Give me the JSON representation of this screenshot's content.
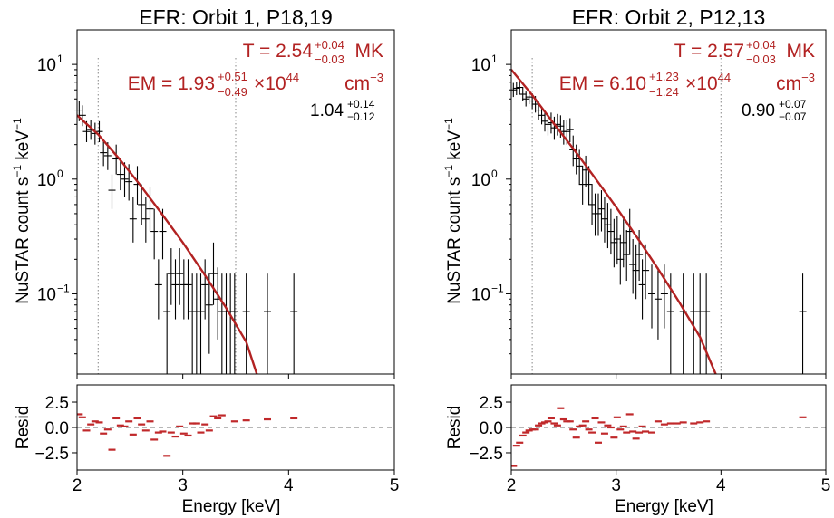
{
  "colors": {
    "model": "#b22222",
    "data": "#000000",
    "resid": "#c0282a",
    "vline": "#9a9a9a"
  },
  "chart_data": [
    {
      "type": "scatter",
      "title": "EFR: Orbit 1, P18,19",
      "ylabel": "NuSTAR count s",
      "ylabel_sup": "−1",
      "ylabel_mid": " keV",
      "ylabel_sup2": "−1",
      "xlabel": "Energy [keV]",
      "resid_ylabel": "Resid",
      "xlim": [
        2,
        5
      ],
      "ylim": [
        0.02,
        20
      ],
      "yscale": "log",
      "xticks": [
        2,
        3,
        4,
        5
      ],
      "xtick_labels": [
        "2",
        "3",
        "4",
        "5"
      ],
      "yticks": [
        0.1,
        1,
        10
      ],
      "ytick_labels": [
        "10",
        "10",
        "10"
      ],
      "ytick_exps": [
        "−1",
        "0",
        "1"
      ],
      "resid_ylim": [
        -4.2,
        4.2
      ],
      "resid_yticks": [
        2.5,
        0.0,
        -2.5
      ],
      "resid_ytick_labels": [
        "2.5",
        "0.0",
        "−2.5"
      ],
      "vlines": [
        2.2,
        3.5
      ],
      "annotations": {
        "T_prefix": "T = ",
        "T_val": "2.54",
        "T_up": "+0.04",
        "T_lo": "−0.03",
        "T_unit": " MK",
        "EM_prefix": "EM = ",
        "EM_val": "1.93",
        "EM_up": "+0.51",
        "EM_lo": "−0.49",
        "EM_times": "×10",
        "EM_exp": "44",
        "EM_unit": " cm",
        "EM_unit_exp": "−3",
        "ratio_val": "1.04",
        "ratio_up": "+0.14",
        "ratio_lo": "−0.12"
      },
      "model": {
        "x": [
          2.0,
          2.2,
          2.4,
          2.6,
          2.8,
          3.0,
          3.2,
          3.4,
          3.6,
          3.7
        ],
        "y": [
          3.6,
          2.45,
          1.5,
          0.88,
          0.5,
          0.28,
          0.15,
          0.078,
          0.038,
          0.02
        ]
      },
      "points": [
        {
          "x": 2.02,
          "y": 4.0,
          "ylo": 3.2,
          "yhi": 4.8
        },
        {
          "x": 2.05,
          "y": 3.6,
          "ylo": 2.9,
          "yhi": 4.4
        },
        {
          "x": 2.09,
          "y": 2.6,
          "ylo": 2.1,
          "yhi": 3.2
        },
        {
          "x": 2.13,
          "y": 2.7,
          "ylo": 2.2,
          "yhi": 3.3
        },
        {
          "x": 2.17,
          "y": 2.5,
          "ylo": 2.0,
          "yhi": 3.1
        },
        {
          "x": 2.21,
          "y": 2.6,
          "ylo": 2.1,
          "yhi": 3.2
        },
        {
          "x": 2.25,
          "y": 1.7,
          "ylo": 1.3,
          "yhi": 2.2
        },
        {
          "x": 2.29,
          "y": 1.6,
          "ylo": 1.2,
          "yhi": 2.1
        },
        {
          "x": 2.33,
          "y": 0.8,
          "ylo": 0.55,
          "yhi": 1.1
        },
        {
          "x": 2.37,
          "y": 1.5,
          "ylo": 1.1,
          "yhi": 2.0
        },
        {
          "x": 2.41,
          "y": 1.1,
          "ylo": 0.8,
          "yhi": 1.5
        },
        {
          "x": 2.45,
          "y": 1.0,
          "ylo": 0.7,
          "yhi": 1.4
        },
        {
          "x": 2.49,
          "y": 0.95,
          "ylo": 0.65,
          "yhi": 1.35
        },
        {
          "x": 2.53,
          "y": 0.45,
          "ylo": 0.28,
          "yhi": 0.7
        },
        {
          "x": 2.57,
          "y": 0.9,
          "ylo": 0.6,
          "yhi": 1.3
        },
        {
          "x": 2.61,
          "y": 0.6,
          "ylo": 0.4,
          "yhi": 0.9
        },
        {
          "x": 2.65,
          "y": 0.45,
          "ylo": 0.28,
          "yhi": 0.7
        },
        {
          "x": 2.69,
          "y": 0.55,
          "ylo": 0.35,
          "yhi": 0.85
        },
        {
          "x": 2.73,
          "y": 0.35,
          "ylo": 0.2,
          "yhi": 0.55
        },
        {
          "x": 2.77,
          "y": 0.12,
          "ylo": 0.06,
          "yhi": 0.2
        },
        {
          "x": 2.81,
          "y": 0.35,
          "ylo": 0.2,
          "yhi": 0.55
        },
        {
          "x": 2.85,
          "y": 0.07,
          "ylo": 0.02,
          "yhi": 0.15
        },
        {
          "x": 2.89,
          "y": 0.15,
          "ylo": 0.08,
          "yhi": 0.25
        },
        {
          "x": 2.93,
          "y": 0.12,
          "ylo": 0.06,
          "yhi": 0.2
        },
        {
          "x": 2.97,
          "y": 0.15,
          "ylo": 0.08,
          "yhi": 0.25
        },
        {
          "x": 3.01,
          "y": 0.12,
          "ylo": 0.06,
          "yhi": 0.2
        },
        {
          "x": 3.05,
          "y": 0.12,
          "ylo": 0.06,
          "yhi": 0.2
        },
        {
          "x": 3.09,
          "y": 0.07,
          "ylo": 0.02,
          "yhi": 0.15
        },
        {
          "x": 3.13,
          "y": 0.07,
          "ylo": 0.02,
          "yhi": 0.15
        },
        {
          "x": 3.17,
          "y": 0.07,
          "ylo": 0.02,
          "yhi": 0.15
        },
        {
          "x": 3.21,
          "y": 0.12,
          "ylo": 0.06,
          "yhi": 0.2
        },
        {
          "x": 3.25,
          "y": 0.08,
          "ylo": 0.03,
          "yhi": 0.15
        },
        {
          "x": 3.29,
          "y": 0.15,
          "ylo": 0.08,
          "yhi": 0.28
        },
        {
          "x": 3.33,
          "y": 0.09,
          "ylo": 0.04,
          "yhi": 0.17
        },
        {
          "x": 3.37,
          "y": 0.07,
          "ylo": 0.02,
          "yhi": 0.15
        },
        {
          "x": 3.41,
          "y": 0.07,
          "ylo": 0.02,
          "yhi": 0.15
        },
        {
          "x": 3.45,
          "y": 0.07,
          "ylo": 0.02,
          "yhi": 0.15
        },
        {
          "x": 3.49,
          "y": 0.07,
          "ylo": 0.02,
          "yhi": 0.15
        },
        {
          "x": 3.6,
          "y": 0.07,
          "ylo": 0.02,
          "yhi": 0.15
        },
        {
          "x": 3.8,
          "y": 0.07,
          "ylo": 0.02,
          "yhi": 0.15
        },
        {
          "x": 4.05,
          "y": 0.07,
          "ylo": 0.02,
          "yhi": 0.15
        }
      ],
      "resid": [
        {
          "x": 2.02,
          "y": 1.3
        },
        {
          "x": 2.05,
          "y": 1.0
        },
        {
          "x": 2.09,
          "y": -0.3
        },
        {
          "x": 2.13,
          "y": 0.3
        },
        {
          "x": 2.17,
          "y": 0.6
        },
        {
          "x": 2.21,
          "y": 0.5
        },
        {
          "x": 2.25,
          "y": -0.6
        },
        {
          "x": 2.29,
          "y": -0.2
        },
        {
          "x": 2.33,
          "y": -2.2
        },
        {
          "x": 2.37,
          "y": 0.9
        },
        {
          "x": 2.41,
          "y": 0.2
        },
        {
          "x": 2.45,
          "y": 0.1
        },
        {
          "x": 2.49,
          "y": 0.6
        },
        {
          "x": 2.53,
          "y": -0.7
        },
        {
          "x": 2.57,
          "y": 0.9
        },
        {
          "x": 2.61,
          "y": 0.3
        },
        {
          "x": 2.65,
          "y": -0.3
        },
        {
          "x": 2.69,
          "y": 0.6
        },
        {
          "x": 2.73,
          "y": -1.2
        },
        {
          "x": 2.77,
          "y": -0.5
        },
        {
          "x": 2.81,
          "y": -0.4
        },
        {
          "x": 2.85,
          "y": -2.8
        },
        {
          "x": 2.89,
          "y": -0.5
        },
        {
          "x": 2.93,
          "y": -0.9
        },
        {
          "x": 2.97,
          "y": 0.1
        },
        {
          "x": 3.01,
          "y": -0.6
        },
        {
          "x": 3.05,
          "y": -0.8
        },
        {
          "x": 3.09,
          "y": 0.4
        },
        {
          "x": 3.13,
          "y": 0.4
        },
        {
          "x": 3.17,
          "y": -0.5
        },
        {
          "x": 3.21,
          "y": 0.3
        },
        {
          "x": 3.25,
          "y": -0.3
        },
        {
          "x": 3.29,
          "y": 1.1
        },
        {
          "x": 3.33,
          "y": 0.9
        },
        {
          "x": 3.37,
          "y": 1.2
        },
        {
          "x": 3.49,
          "y": 0.6
        },
        {
          "x": 3.6,
          "y": 0.7
        },
        {
          "x": 3.8,
          "y": 0.8
        },
        {
          "x": 4.05,
          "y": 0.9
        }
      ]
    },
    {
      "type": "scatter",
      "title": "EFR: Orbit 2, P12,13",
      "ylabel": "NuSTAR count s",
      "ylabel_sup": "−1",
      "ylabel_mid": " keV",
      "ylabel_sup2": "−1",
      "xlabel": "Energy [keV]",
      "resid_ylabel": "Resid",
      "xlim": [
        2,
        5
      ],
      "ylim": [
        0.02,
        20
      ],
      "yscale": "log",
      "xticks": [
        2,
        3,
        4,
        5
      ],
      "xtick_labels": [
        "2",
        "3",
        "4",
        "5"
      ],
      "yticks": [
        0.1,
        1,
        10
      ],
      "ytick_labels": [
        "10",
        "10",
        "10"
      ],
      "ytick_exps": [
        "−1",
        "0",
        "1"
      ],
      "resid_ylim": [
        -4.2,
        4.2
      ],
      "resid_yticks": [
        2.5,
        0.0,
        -2.5
      ],
      "resid_ytick_labels": [
        "2.5",
        "0.0",
        "−2.5"
      ],
      "vlines": [
        2.2,
        4.0
      ],
      "annotations": {
        "T_prefix": "T = ",
        "T_val": "2.57",
        "T_up": "+0.04",
        "T_lo": "−0.03",
        "T_unit": " MK",
        "EM_prefix": "EM = ",
        "EM_val": "6.10",
        "EM_up": "+1.23",
        "EM_lo": "−1.24",
        "EM_times": "×10",
        "EM_exp": "44",
        "EM_unit": " cm",
        "EM_unit_exp": "−3",
        "ratio_val": "0.90",
        "ratio_up": "+0.07",
        "ratio_lo": "−0.07"
      },
      "model": {
        "x": [
          2.0,
          2.2,
          2.4,
          2.6,
          2.8,
          3.0,
          3.2,
          3.4,
          3.6,
          3.8,
          3.95
        ],
        "y": [
          9.0,
          5.4,
          3.1,
          1.8,
          1.02,
          0.57,
          0.31,
          0.165,
          0.085,
          0.042,
          0.02
        ]
      },
      "points": [
        {
          "x": 2.02,
          "y": 6.0,
          "ylo": 5.2,
          "yhi": 6.9
        },
        {
          "x": 2.05,
          "y": 6.2,
          "ylo": 5.4,
          "yhi": 7.1
        },
        {
          "x": 2.08,
          "y": 6.3,
          "ylo": 5.5,
          "yhi": 7.2
        },
        {
          "x": 2.11,
          "y": 5.5,
          "ylo": 4.8,
          "yhi": 6.3
        },
        {
          "x": 2.14,
          "y": 5.0,
          "ylo": 4.3,
          "yhi": 5.8
        },
        {
          "x": 2.17,
          "y": 5.2,
          "ylo": 4.5,
          "yhi": 6.0
        },
        {
          "x": 2.2,
          "y": 4.8,
          "ylo": 4.1,
          "yhi": 5.6
        },
        {
          "x": 2.23,
          "y": 4.5,
          "ylo": 3.8,
          "yhi": 5.3
        },
        {
          "x": 2.26,
          "y": 4.0,
          "ylo": 3.3,
          "yhi": 4.8
        },
        {
          "x": 2.29,
          "y": 3.6,
          "ylo": 3.0,
          "yhi": 4.3
        },
        {
          "x": 2.32,
          "y": 3.2,
          "ylo": 2.6,
          "yhi": 3.9
        },
        {
          "x": 2.35,
          "y": 3.0,
          "ylo": 2.4,
          "yhi": 3.7
        },
        {
          "x": 2.38,
          "y": 3.1,
          "ylo": 2.5,
          "yhi": 3.8
        },
        {
          "x": 2.41,
          "y": 2.8,
          "ylo": 2.2,
          "yhi": 3.5
        },
        {
          "x": 2.44,
          "y": 3.0,
          "ylo": 2.4,
          "yhi": 3.7
        },
        {
          "x": 2.47,
          "y": 2.9,
          "ylo": 2.3,
          "yhi": 3.6
        },
        {
          "x": 2.5,
          "y": 2.6,
          "ylo": 2.0,
          "yhi": 3.3
        },
        {
          "x": 2.53,
          "y": 2.6,
          "ylo": 2.0,
          "yhi": 3.3
        },
        {
          "x": 2.56,
          "y": 2.7,
          "ylo": 2.1,
          "yhi": 3.4
        },
        {
          "x": 2.59,
          "y": 1.8,
          "ylo": 1.3,
          "yhi": 2.4
        },
        {
          "x": 2.62,
          "y": 1.5,
          "ylo": 1.1,
          "yhi": 2.0
        },
        {
          "x": 2.65,
          "y": 1.3,
          "ylo": 0.9,
          "yhi": 1.8
        },
        {
          "x": 2.68,
          "y": 0.9,
          "ylo": 0.6,
          "yhi": 1.3
        },
        {
          "x": 2.71,
          "y": 1.2,
          "ylo": 0.85,
          "yhi": 1.6
        },
        {
          "x": 2.74,
          "y": 0.9,
          "ylo": 0.6,
          "yhi": 1.3
        },
        {
          "x": 2.77,
          "y": 0.6,
          "ylo": 0.4,
          "yhi": 0.9
        },
        {
          "x": 2.8,
          "y": 0.5,
          "ylo": 0.32,
          "yhi": 0.75
        },
        {
          "x": 2.83,
          "y": 0.5,
          "ylo": 0.32,
          "yhi": 0.75
        },
        {
          "x": 2.86,
          "y": 0.55,
          "ylo": 0.35,
          "yhi": 0.8
        },
        {
          "x": 2.89,
          "y": 0.45,
          "ylo": 0.28,
          "yhi": 0.7
        },
        {
          "x": 2.92,
          "y": 0.4,
          "ylo": 0.25,
          "yhi": 0.62
        },
        {
          "x": 2.95,
          "y": 0.35,
          "ylo": 0.22,
          "yhi": 0.55
        },
        {
          "x": 2.98,
          "y": 0.28,
          "ylo": 0.17,
          "yhi": 0.45
        },
        {
          "x": 3.01,
          "y": 0.3,
          "ylo": 0.18,
          "yhi": 0.48
        },
        {
          "x": 3.04,
          "y": 0.2,
          "ylo": 0.12,
          "yhi": 0.33
        },
        {
          "x": 3.07,
          "y": 0.28,
          "ylo": 0.17,
          "yhi": 0.45
        },
        {
          "x": 3.1,
          "y": 0.22,
          "ylo": 0.13,
          "yhi": 0.36
        },
        {
          "x": 3.13,
          "y": 0.35,
          "ylo": 0.22,
          "yhi": 0.55
        },
        {
          "x": 3.16,
          "y": 0.18,
          "ylo": 0.1,
          "yhi": 0.3
        },
        {
          "x": 3.19,
          "y": 0.16,
          "ylo": 0.09,
          "yhi": 0.27
        },
        {
          "x": 3.22,
          "y": 0.22,
          "ylo": 0.13,
          "yhi": 0.36
        },
        {
          "x": 3.25,
          "y": 0.12,
          "ylo": 0.06,
          "yhi": 0.2
        },
        {
          "x": 3.28,
          "y": 0.16,
          "ylo": 0.09,
          "yhi": 0.27
        },
        {
          "x": 3.34,
          "y": 0.1,
          "ylo": 0.05,
          "yhi": 0.18
        },
        {
          "x": 3.4,
          "y": 0.09,
          "ylo": 0.04,
          "yhi": 0.17
        },
        {
          "x": 3.46,
          "y": 0.1,
          "ylo": 0.05,
          "yhi": 0.18
        },
        {
          "x": 3.52,
          "y": 0.07,
          "ylo": 0.02,
          "yhi": 0.15
        },
        {
          "x": 3.64,
          "y": 0.07,
          "ylo": 0.02,
          "yhi": 0.15
        },
        {
          "x": 3.74,
          "y": 0.07,
          "ylo": 0.02,
          "yhi": 0.15
        },
        {
          "x": 3.8,
          "y": 0.07,
          "ylo": 0.02,
          "yhi": 0.15
        },
        {
          "x": 3.86,
          "y": 0.07,
          "ylo": 0.02,
          "yhi": 0.15
        },
        {
          "x": 4.78,
          "y": 0.07,
          "ylo": 0.02,
          "yhi": 0.15
        }
      ],
      "resid": [
        {
          "x": 2.02,
          "y": -3.8
        },
        {
          "x": 2.05,
          "y": -1.8
        },
        {
          "x": 2.08,
          "y": -1.5
        },
        {
          "x": 2.11,
          "y": -0.8
        },
        {
          "x": 2.14,
          "y": -0.5
        },
        {
          "x": 2.17,
          "y": -0.3
        },
        {
          "x": 2.2,
          "y": -0.2
        },
        {
          "x": 2.23,
          "y": -0.2
        },
        {
          "x": 2.26,
          "y": 0.2
        },
        {
          "x": 2.29,
          "y": 0.4
        },
        {
          "x": 2.32,
          "y": 0.5
        },
        {
          "x": 2.35,
          "y": 0.6
        },
        {
          "x": 2.38,
          "y": 0.9
        },
        {
          "x": 2.41,
          "y": 0.4
        },
        {
          "x": 2.44,
          "y": 0.2
        },
        {
          "x": 2.47,
          "y": 1.9
        },
        {
          "x": 2.5,
          "y": 0.8
        },
        {
          "x": 2.53,
          "y": 0.6
        },
        {
          "x": 2.56,
          "y": 0.6
        },
        {
          "x": 2.59,
          "y": -0.2
        },
        {
          "x": 2.62,
          "y": -1.0
        },
        {
          "x": 2.65,
          "y": 0.1
        },
        {
          "x": 2.68,
          "y": 0.2
        },
        {
          "x": 2.71,
          "y": 0.6
        },
        {
          "x": 2.74,
          "y": -0.2
        },
        {
          "x": 2.77,
          "y": -0.5
        },
        {
          "x": 2.8,
          "y": 0.9
        },
        {
          "x": 2.83,
          "y": -1.5
        },
        {
          "x": 2.86,
          "y": 0.5
        },
        {
          "x": 2.89,
          "y": -0.6
        },
        {
          "x": 2.92,
          "y": 0.2
        },
        {
          "x": 2.95,
          "y": 0.0
        },
        {
          "x": 2.98,
          "y": -1.0
        },
        {
          "x": 3.01,
          "y": 1.0
        },
        {
          "x": 3.04,
          "y": -0.2
        },
        {
          "x": 3.07,
          "y": 0.1
        },
        {
          "x": 3.1,
          "y": -0.5
        },
        {
          "x": 3.13,
          "y": 1.3
        },
        {
          "x": 3.16,
          "y": -0.4
        },
        {
          "x": 3.19,
          "y": -1.1
        },
        {
          "x": 3.22,
          "y": -0.5
        },
        {
          "x": 3.25,
          "y": 0.1
        },
        {
          "x": 3.28,
          "y": -0.4
        },
        {
          "x": 3.34,
          "y": -0.5
        },
        {
          "x": 3.4,
          "y": 0.6
        },
        {
          "x": 3.46,
          "y": 0.3
        },
        {
          "x": 3.52,
          "y": 0.4
        },
        {
          "x": 3.58,
          "y": 0.4
        },
        {
          "x": 3.64,
          "y": 0.5
        },
        {
          "x": 3.74,
          "y": 0.4
        },
        {
          "x": 3.8,
          "y": 0.5
        },
        {
          "x": 3.86,
          "y": 0.6
        },
        {
          "x": 4.78,
          "y": 1.0
        }
      ]
    }
  ]
}
